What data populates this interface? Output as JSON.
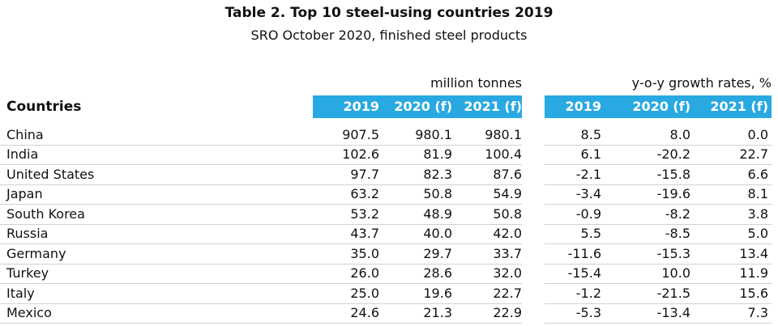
{
  "title": "Table 2. Top 10 steel-using countries 2019",
  "subtitle": "SRO October 2020, finished steel products",
  "unit_left": "million tonnes",
  "unit_right": "y-o-y growth rates, %",
  "countries_header": "Countries",
  "header_color": "#29a9e1",
  "columns_tonnes": [
    "2019",
    "2020 (f)",
    "2021 (f)"
  ],
  "columns_growth": [
    "2019",
    "2020 (f)",
    "2021 (f)"
  ],
  "rows": [
    {
      "country": "China",
      "t2019": "907.5",
      "t2020": "980.1",
      "t2021": "980.1",
      "g2019": "8.5",
      "g2020": "8.0",
      "g2021": "0.0"
    },
    {
      "country": "India",
      "t2019": "102.6",
      "t2020": "81.9",
      "t2021": "100.4",
      "g2019": "6.1",
      "g2020": "-20.2",
      "g2021": "22.7"
    },
    {
      "country": "United States",
      "t2019": "97.7",
      "t2020": "82.3",
      "t2021": "87.6",
      "g2019": "-2.1",
      "g2020": "-15.8",
      "g2021": "6.6"
    },
    {
      "country": "Japan",
      "t2019": "63.2",
      "t2020": "50.8",
      "t2021": "54.9",
      "g2019": "-3.4",
      "g2020": "-19.6",
      "g2021": "8.1"
    },
    {
      "country": "South Korea",
      "t2019": "53.2",
      "t2020": "48.9",
      "t2021": "50.8",
      "g2019": "-0.9",
      "g2020": "-8.2",
      "g2021": "3.8"
    },
    {
      "country": "Russia",
      "t2019": "43.7",
      "t2020": "40.0",
      "t2021": "42.0",
      "g2019": "5.5",
      "g2020": "-8.5",
      "g2021": "5.0"
    },
    {
      "country": "Germany",
      "t2019": "35.0",
      "t2020": "29.7",
      "t2021": "33.7",
      "g2019": "-11.6",
      "g2020": "-15.3",
      "g2021": "13.4"
    },
    {
      "country": "Turkey",
      "t2019": "26.0",
      "t2020": "28.6",
      "t2021": "32.0",
      "g2019": "-15.4",
      "g2020": "10.0",
      "g2021": "11.9"
    },
    {
      "country": "Italy",
      "t2019": "25.0",
      "t2020": "19.6",
      "t2021": "22.7",
      "g2019": "-1.2",
      "g2020": "-21.5",
      "g2021": "15.6"
    },
    {
      "country": "Mexico",
      "t2019": "24.6",
      "t2020": "21.3",
      "t2021": "22.9",
      "g2019": "-5.3",
      "g2020": "-13.4",
      "g2021": "7.3"
    }
  ]
}
